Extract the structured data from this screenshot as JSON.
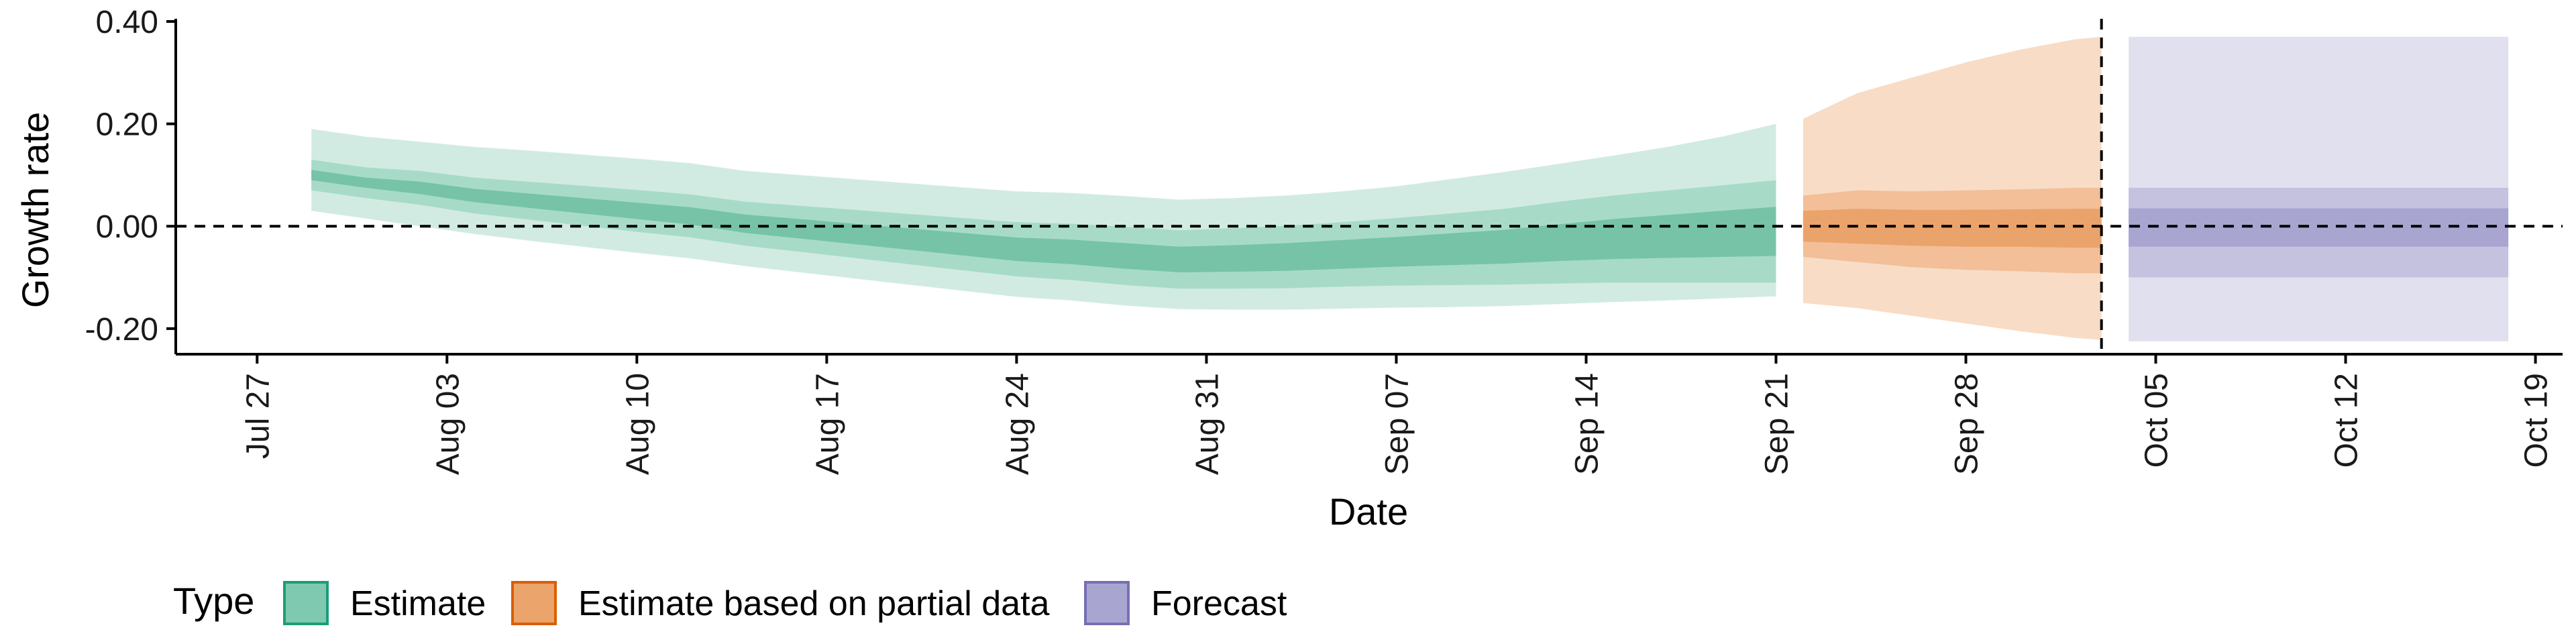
{
  "chart_data": {
    "type": "area",
    "xlabel": "Date",
    "ylabel": "Growth rate",
    "ylim": [
      -0.25,
      0.4
    ],
    "xlim": [
      "2020-07-24",
      "2020-10-20"
    ],
    "y_ticks": [
      -0.2,
      0.0,
      0.2,
      0.4
    ],
    "y_tick_labels": [
      "-0.20",
      "0.00",
      "0.20",
      "0.40"
    ],
    "x_ticks": [
      "2020-07-27",
      "2020-08-03",
      "2020-08-10",
      "2020-08-17",
      "2020-08-24",
      "2020-08-31",
      "2020-09-07",
      "2020-09-14",
      "2020-09-21",
      "2020-09-28",
      "2020-10-05",
      "2020-10-12",
      "2020-10-19"
    ],
    "x_tick_labels": [
      "Jul 27",
      "Aug 03",
      "Aug 10",
      "Aug 17",
      "Aug 24",
      "Aug 31",
      "Sep 07",
      "Sep 14",
      "Sep 21",
      "Sep 28",
      "Oct 05",
      "Oct 12",
      "Oct 19"
    ],
    "reference_line": {
      "y": 0.0,
      "style": "dashed"
    },
    "vertical_line": {
      "x": "2020-10-03",
      "style": "dashed"
    },
    "legend": {
      "title": "Type",
      "position": "bottom",
      "items": [
        {
          "label": "Estimate",
          "fill": "#7fc9b0",
          "stroke": "#1b9e77"
        },
        {
          "label": "Estimate based on partial data",
          "fill": "#eba46b",
          "stroke": "#d95f02"
        },
        {
          "label": "Forecast",
          "fill": "#a9a5d1",
          "stroke": "#7570b3"
        }
      ]
    },
    "series": [
      {
        "name": "Estimate",
        "colors": {
          "outer": "#d2ebe2",
          "mid": "#a7dbc8",
          "inner": "#76c3a8"
        },
        "x": [
          "2020-07-29",
          "2020-07-31",
          "2020-08-02",
          "2020-08-04",
          "2020-08-06",
          "2020-08-08",
          "2020-08-10",
          "2020-08-12",
          "2020-08-14",
          "2020-08-16",
          "2020-08-18",
          "2020-08-20",
          "2020-08-22",
          "2020-08-24",
          "2020-08-26",
          "2020-08-28",
          "2020-08-30",
          "2020-09-01",
          "2020-09-03",
          "2020-09-05",
          "2020-09-07",
          "2020-09-09",
          "2020-09-11",
          "2020-09-13",
          "2020-09-15",
          "2020-09-17",
          "2020-09-19",
          "2020-09-21"
        ],
        "median": [
          0.1,
          0.085,
          0.075,
          0.06,
          0.05,
          0.04,
          0.03,
          0.02,
          0.005,
          -0.005,
          -0.015,
          -0.025,
          -0.035,
          -0.045,
          -0.05,
          -0.058,
          -0.065,
          -0.063,
          -0.06,
          -0.055,
          -0.05,
          -0.045,
          -0.04,
          -0.032,
          -0.025,
          -0.02,
          -0.015,
          -0.01
        ],
        "inner": [
          [
            0.09,
            0.11
          ],
          [
            0.075,
            0.095
          ],
          [
            0.063,
            0.087
          ],
          [
            0.047,
            0.073
          ],
          [
            0.036,
            0.064
          ],
          [
            0.025,
            0.055
          ],
          [
            0.014,
            0.046
          ],
          [
            0.003,
            0.037
          ],
          [
            -0.013,
            0.023
          ],
          [
            -0.024,
            0.014
          ],
          [
            -0.035,
            0.005
          ],
          [
            -0.046,
            -0.004
          ],
          [
            -0.057,
            -0.013
          ],
          [
            -0.068,
            -0.022
          ],
          [
            -0.074,
            -0.026
          ],
          [
            -0.083,
            -0.033
          ],
          [
            -0.09,
            -0.04
          ],
          [
            -0.089,
            -0.037
          ],
          [
            -0.087,
            -0.033
          ],
          [
            -0.083,
            -0.027
          ],
          [
            -0.079,
            -0.021
          ],
          [
            -0.076,
            -0.014
          ],
          [
            -0.073,
            -0.007
          ],
          [
            -0.068,
            0.004
          ],
          [
            -0.064,
            0.014
          ],
          [
            -0.062,
            0.022
          ],
          [
            -0.06,
            0.03
          ],
          [
            -0.058,
            0.038
          ]
        ],
        "mid": [
          [
            0.07,
            0.13
          ],
          [
            0.055,
            0.115
          ],
          [
            0.042,
            0.108
          ],
          [
            0.025,
            0.095
          ],
          [
            0.013,
            0.087
          ],
          [
            0.001,
            0.079
          ],
          [
            -0.011,
            0.071
          ],
          [
            -0.022,
            0.062
          ],
          [
            -0.038,
            0.048
          ],
          [
            -0.05,
            0.04
          ],
          [
            -0.062,
            0.032
          ],
          [
            -0.074,
            0.024
          ],
          [
            -0.086,
            0.016
          ],
          [
            -0.098,
            0.008
          ],
          [
            -0.105,
            0.005
          ],
          [
            -0.115,
            -0.001
          ],
          [
            -0.122,
            -0.008
          ],
          [
            -0.122,
            -0.004
          ],
          [
            -0.121,
            0.001
          ],
          [
            -0.118,
            0.008
          ],
          [
            -0.116,
            0.016
          ],
          [
            -0.115,
            0.025
          ],
          [
            -0.114,
            0.034
          ],
          [
            -0.112,
            0.048
          ],
          [
            -0.11,
            0.06
          ],
          [
            -0.11,
            0.07
          ],
          [
            -0.11,
            0.08
          ],
          [
            -0.11,
            0.09
          ]
        ],
        "outer": [
          [
            0.03,
            0.19
          ],
          [
            0.015,
            0.175
          ],
          [
            0.0,
            0.165
          ],
          [
            -0.015,
            0.155
          ],
          [
            -0.028,
            0.148
          ],
          [
            -0.04,
            0.14
          ],
          [
            -0.052,
            0.132
          ],
          [
            -0.063,
            0.123
          ],
          [
            -0.078,
            0.108
          ],
          [
            -0.09,
            0.1
          ],
          [
            -0.102,
            0.092
          ],
          [
            -0.114,
            0.084
          ],
          [
            -0.126,
            0.076
          ],
          [
            -0.138,
            0.068
          ],
          [
            -0.145,
            0.065
          ],
          [
            -0.155,
            0.059
          ],
          [
            -0.162,
            0.052
          ],
          [
            -0.163,
            0.055
          ],
          [
            -0.163,
            0.06
          ],
          [
            -0.161,
            0.068
          ],
          [
            -0.159,
            0.078
          ],
          [
            -0.158,
            0.092
          ],
          [
            -0.156,
            0.106
          ],
          [
            -0.152,
            0.122
          ],
          [
            -0.148,
            0.138
          ],
          [
            -0.145,
            0.155
          ],
          [
            -0.141,
            0.175
          ],
          [
            -0.137,
            0.2
          ]
        ]
      },
      {
        "name": "Estimate based on partial data",
        "colors": {
          "outer": "#f8dcc6",
          "mid": "#f2bf98",
          "inner": "#eba36c"
        },
        "x": [
          "2020-09-22",
          "2020-09-24",
          "2020-09-26",
          "2020-09-28",
          "2020-09-30",
          "2020-10-02",
          "2020-10-03"
        ],
        "median": [
          0.0,
          0.0,
          -0.005,
          -0.005,
          -0.005,
          -0.005,
          -0.005
        ],
        "inner": [
          [
            -0.03,
            0.03
          ],
          [
            -0.034,
            0.034
          ],
          [
            -0.038,
            0.032
          ],
          [
            -0.04,
            0.032
          ],
          [
            -0.04,
            0.033
          ],
          [
            -0.042,
            0.034
          ],
          [
            -0.042,
            0.034
          ]
        ],
        "mid": [
          [
            -0.06,
            0.06
          ],
          [
            -0.07,
            0.07
          ],
          [
            -0.08,
            0.068
          ],
          [
            -0.085,
            0.07
          ],
          [
            -0.088,
            0.072
          ],
          [
            -0.092,
            0.075
          ],
          [
            -0.092,
            0.075
          ]
        ],
        "outer": [
          [
            -0.15,
            0.21
          ],
          [
            -0.16,
            0.26
          ],
          [
            -0.175,
            0.29
          ],
          [
            -0.19,
            0.32
          ],
          [
            -0.205,
            0.345
          ],
          [
            -0.218,
            0.365
          ],
          [
            -0.222,
            0.37
          ]
        ]
      },
      {
        "name": "Forecast",
        "colors": {
          "outer": "#e1e0ef",
          "mid": "#c5c2e0",
          "inner": "#a9a5d1"
        },
        "x": [
          "2020-10-04",
          "2020-10-18"
        ],
        "median": [
          0.0,
          0.0
        ],
        "inner": [
          [
            -0.04,
            0.035
          ],
          [
            -0.04,
            0.035
          ]
        ],
        "mid": [
          [
            -0.1,
            0.075
          ],
          [
            -0.1,
            0.075
          ]
        ],
        "outer": [
          [
            -0.225,
            0.37
          ],
          [
            -0.225,
            0.37
          ]
        ]
      }
    ]
  }
}
